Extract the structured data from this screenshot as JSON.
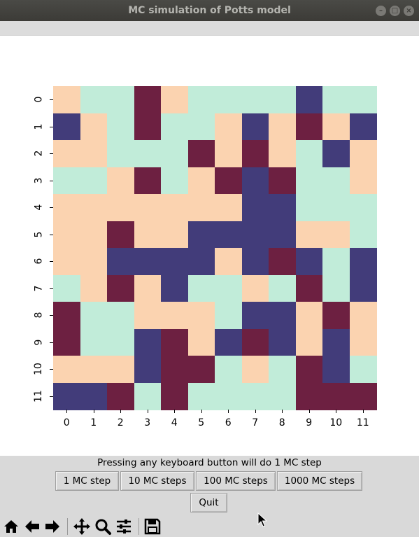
{
  "window": {
    "title": "MC simulation of Potts model"
  },
  "chart_data": {
    "type": "heatmap",
    "rows": 12,
    "cols": 12,
    "x_tick_labels": [
      "0",
      "1",
      "2",
      "3",
      "4",
      "5",
      "6",
      "7",
      "8",
      "9",
      "10",
      "11"
    ],
    "y_tick_labels": [
      "0",
      "1",
      "2",
      "3",
      "4",
      "5",
      "6",
      "7",
      "8",
      "9",
      "10",
      "11"
    ],
    "state_colors": {
      "A": "#fbd3b0",
      "B": "#c1ecd9",
      "C": "#6d2041",
      "D": "#423c7a"
    },
    "grid": [
      [
        "A",
        "B",
        "B",
        "C",
        "A",
        "B",
        "B",
        "B",
        "B",
        "D",
        "B",
        "B"
      ],
      [
        "D",
        "A",
        "B",
        "C",
        "B",
        "B",
        "A",
        "D",
        "A",
        "C",
        "A",
        "D"
      ],
      [
        "A",
        "A",
        "B",
        "B",
        "B",
        "C",
        "A",
        "C",
        "A",
        "B",
        "D",
        "A"
      ],
      [
        "B",
        "B",
        "A",
        "C",
        "B",
        "A",
        "C",
        "D",
        "C",
        "B",
        "B",
        "A"
      ],
      [
        "A",
        "A",
        "A",
        "A",
        "A",
        "A",
        "A",
        "D",
        "D",
        "B",
        "B",
        "B"
      ],
      [
        "A",
        "A",
        "C",
        "A",
        "A",
        "D",
        "D",
        "D",
        "D",
        "A",
        "A",
        "B"
      ],
      [
        "A",
        "A",
        "D",
        "D",
        "D",
        "D",
        "A",
        "D",
        "C",
        "D",
        "B",
        "D"
      ],
      [
        "B",
        "A",
        "C",
        "A",
        "D",
        "B",
        "B",
        "A",
        "B",
        "C",
        "B",
        "D"
      ],
      [
        "C",
        "B",
        "B",
        "A",
        "A",
        "A",
        "B",
        "D",
        "D",
        "A",
        "C",
        "A"
      ],
      [
        "C",
        "B",
        "B",
        "D",
        "C",
        "A",
        "D",
        "C",
        "D",
        "A",
        "D",
        "A"
      ],
      [
        "A",
        "A",
        "A",
        "D",
        "C",
        "C",
        "B",
        "A",
        "B",
        "C",
        "D",
        "B"
      ],
      [
        "D",
        "D",
        "C",
        "B",
        "C",
        "B",
        "B",
        "B",
        "B",
        "C",
        "C",
        "C"
      ]
    ]
  },
  "controls": {
    "hint": "Pressing any keyboard button will do 1 MC step",
    "buttons": {
      "step1": "1 MC step",
      "step10": "10 MC steps",
      "step100": "100 MC steps",
      "step1000": "1000 MC steps",
      "quit": "Quit"
    }
  },
  "toolbar": {
    "icons": [
      "home-icon",
      "back-arrow-icon",
      "forward-arrow-icon",
      "pan-icon",
      "zoom-icon",
      "configure-subplots-icon",
      "save-icon"
    ]
  }
}
